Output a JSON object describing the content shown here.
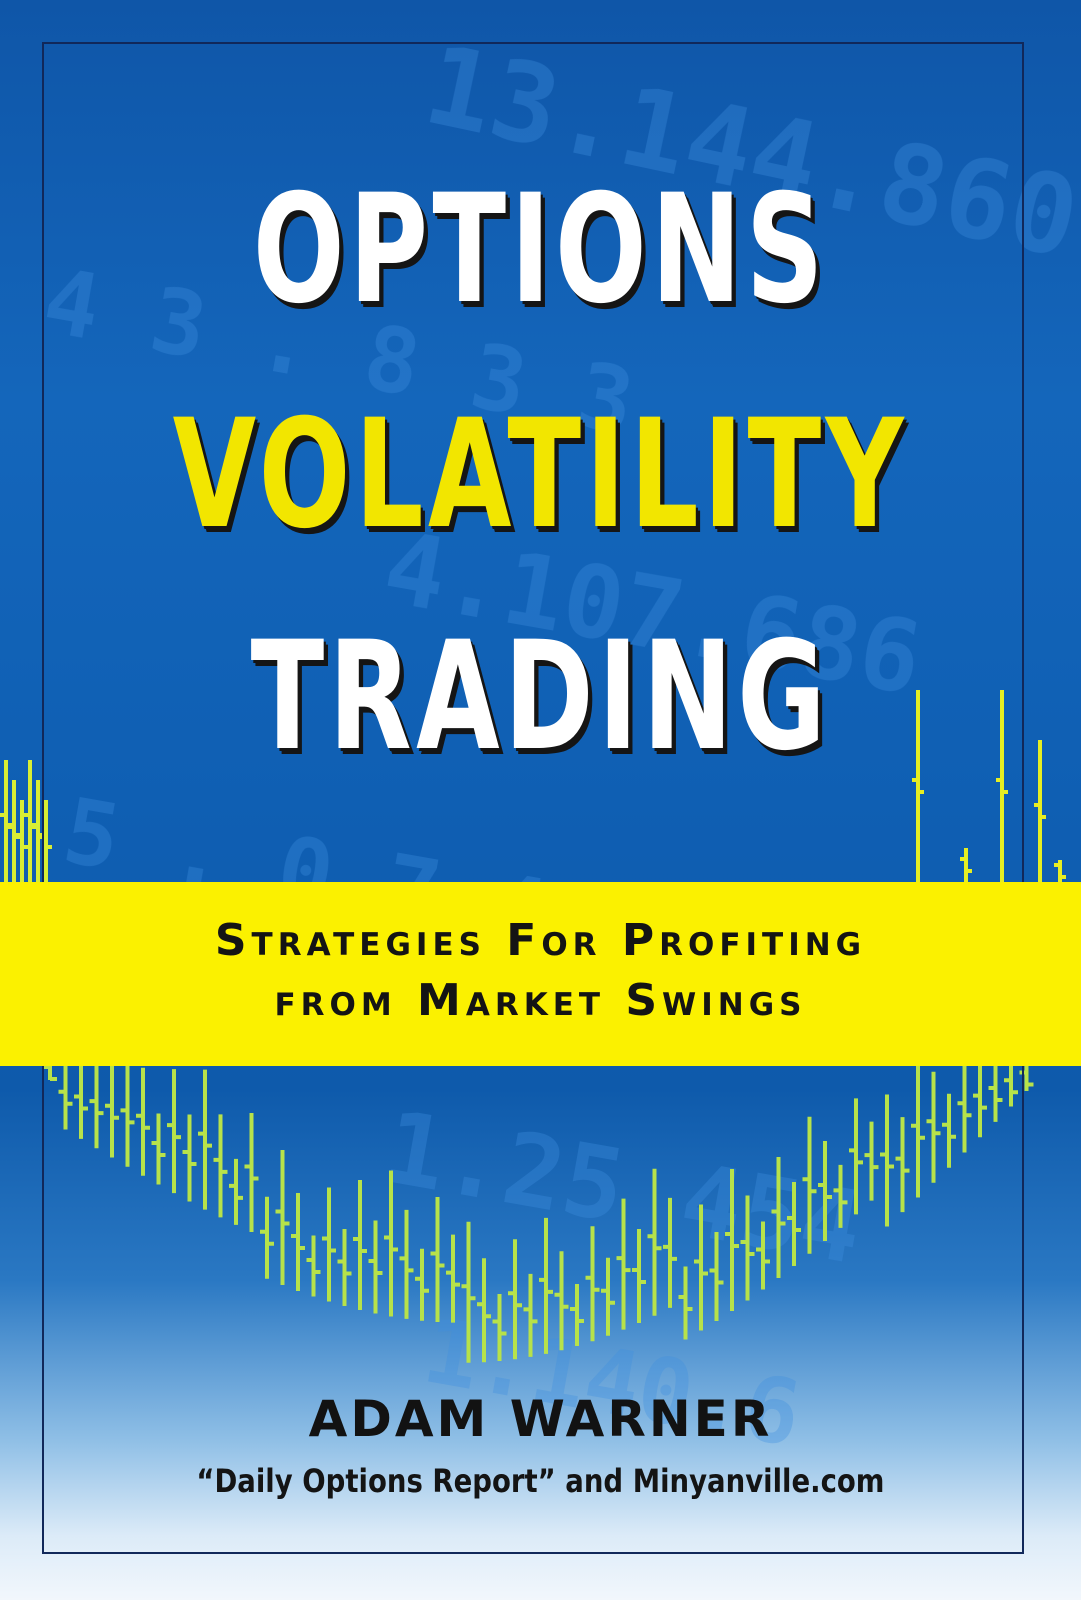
{
  "title": {
    "line1": "OPTIONS",
    "line2": "VOLATILITY",
    "line3": "TRADING"
  },
  "subtitle": {
    "line1": "Strategies For Profiting",
    "line2": "from Market Swings"
  },
  "author": "ADAM WARNER",
  "affiliation": "“Daily Options Report” and Minyanville.com",
  "colors": {
    "background_blue": "#0f5fb3",
    "title_white": "#ffffff",
    "title_yellow": "#f2e600",
    "band_yellow": "#fbf100",
    "bars_green": "#b7e24a"
  }
}
